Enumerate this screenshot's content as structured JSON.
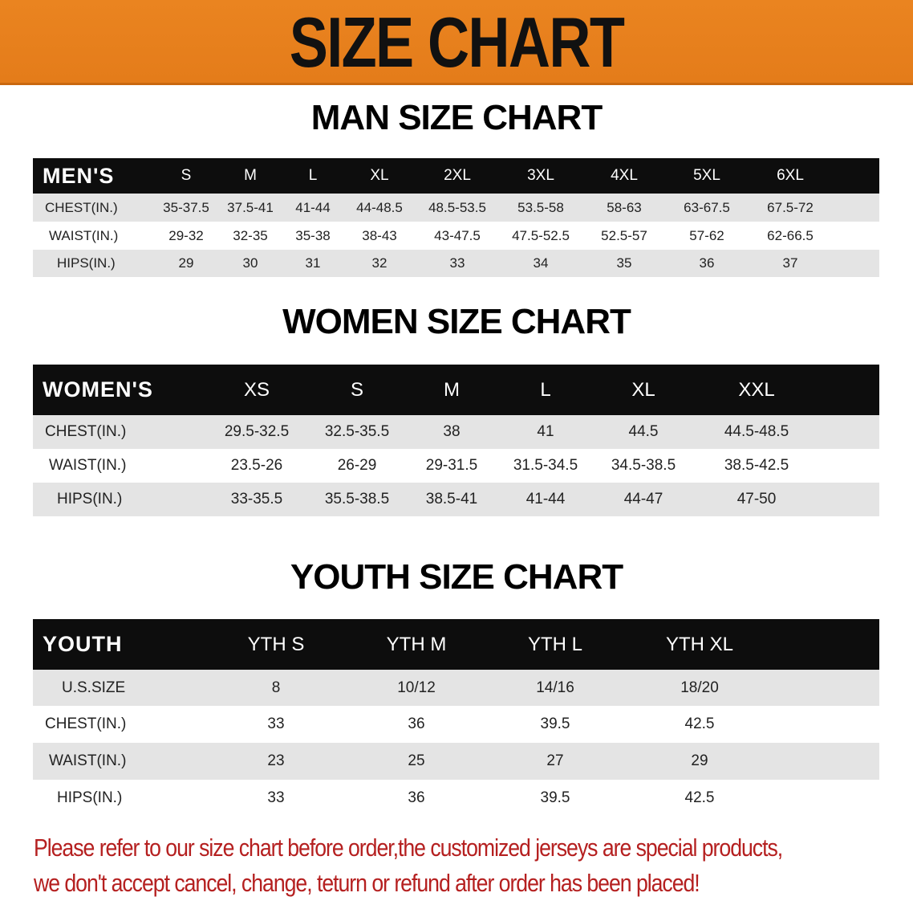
{
  "banner": {
    "title": "SIZE CHART",
    "background": "#E8801E"
  },
  "men": {
    "title": "MAN SIZE CHART",
    "header": "MEN'S",
    "columns": [
      "S",
      "M",
      "L",
      "XL",
      "2XL",
      "3XL",
      "4XL",
      "5XL",
      "6XL"
    ],
    "rows": [
      {
        "label": "CHEST(IN.)",
        "values": [
          "35-37.5",
          "37.5-41",
          "41-44",
          "44-48.5",
          "48.5-53.5",
          "53.5-58",
          "58-63",
          "63-67.5",
          "67.5-72"
        ]
      },
      {
        "label": "WAIST(IN.)",
        "values": [
          "29-32",
          "32-35",
          "35-38",
          "38-43",
          "43-47.5",
          "47.5-52.5",
          "52.5-57",
          "57-62",
          "62-66.5"
        ]
      },
      {
        "label": "HIPS(IN.)",
        "values": [
          "29",
          "30",
          "31",
          "32",
          "33",
          "34",
          "35",
          "36",
          "37"
        ]
      }
    ]
  },
  "women": {
    "title": "WOMEN SIZE CHART",
    "header": "WOMEN'S",
    "columns": [
      "XS",
      "S",
      "M",
      "L",
      "XL",
      "XXL"
    ],
    "rows": [
      {
        "label": "CHEST(IN.)",
        "values": [
          "29.5-32.5",
          "32.5-35.5",
          "38",
          "41",
          "44.5",
          "44.5-48.5"
        ]
      },
      {
        "label": "WAIST(IN.)",
        "values": [
          "23.5-26",
          "26-29",
          "29-31.5",
          "31.5-34.5",
          "34.5-38.5",
          "38.5-42.5"
        ]
      },
      {
        "label": "HIPS(IN.)",
        "values": [
          "33-35.5",
          "35.5-38.5",
          "38.5-41",
          "41-44",
          "44-47",
          "47-50"
        ]
      }
    ]
  },
  "youth": {
    "title": "YOUTH SIZE CHART",
    "header": "YOUTH",
    "columns": [
      "YTH S",
      "YTH M",
      "YTH L",
      "YTH XL"
    ],
    "rows": [
      {
        "label": "U.S.SIZE",
        "values": [
          "8",
          "10/12",
          "14/16",
          "18/20"
        ]
      },
      {
        "label": "CHEST(IN.)",
        "values": [
          "33",
          "36",
          "39.5",
          "42.5"
        ]
      },
      {
        "label": "WAIST(IN.)",
        "values": [
          "23",
          "25",
          "27",
          "29"
        ]
      },
      {
        "label": "HIPS(IN.)",
        "values": [
          "33",
          "36",
          "39.5",
          "42.5"
        ]
      }
    ]
  },
  "notice": {
    "line1": "Please refer to our size chart before order,the customized jerseys are special products,",
    "line2": "we don't accept cancel, change, teturn or refund after order has been placed!",
    "color": "#B52020"
  }
}
